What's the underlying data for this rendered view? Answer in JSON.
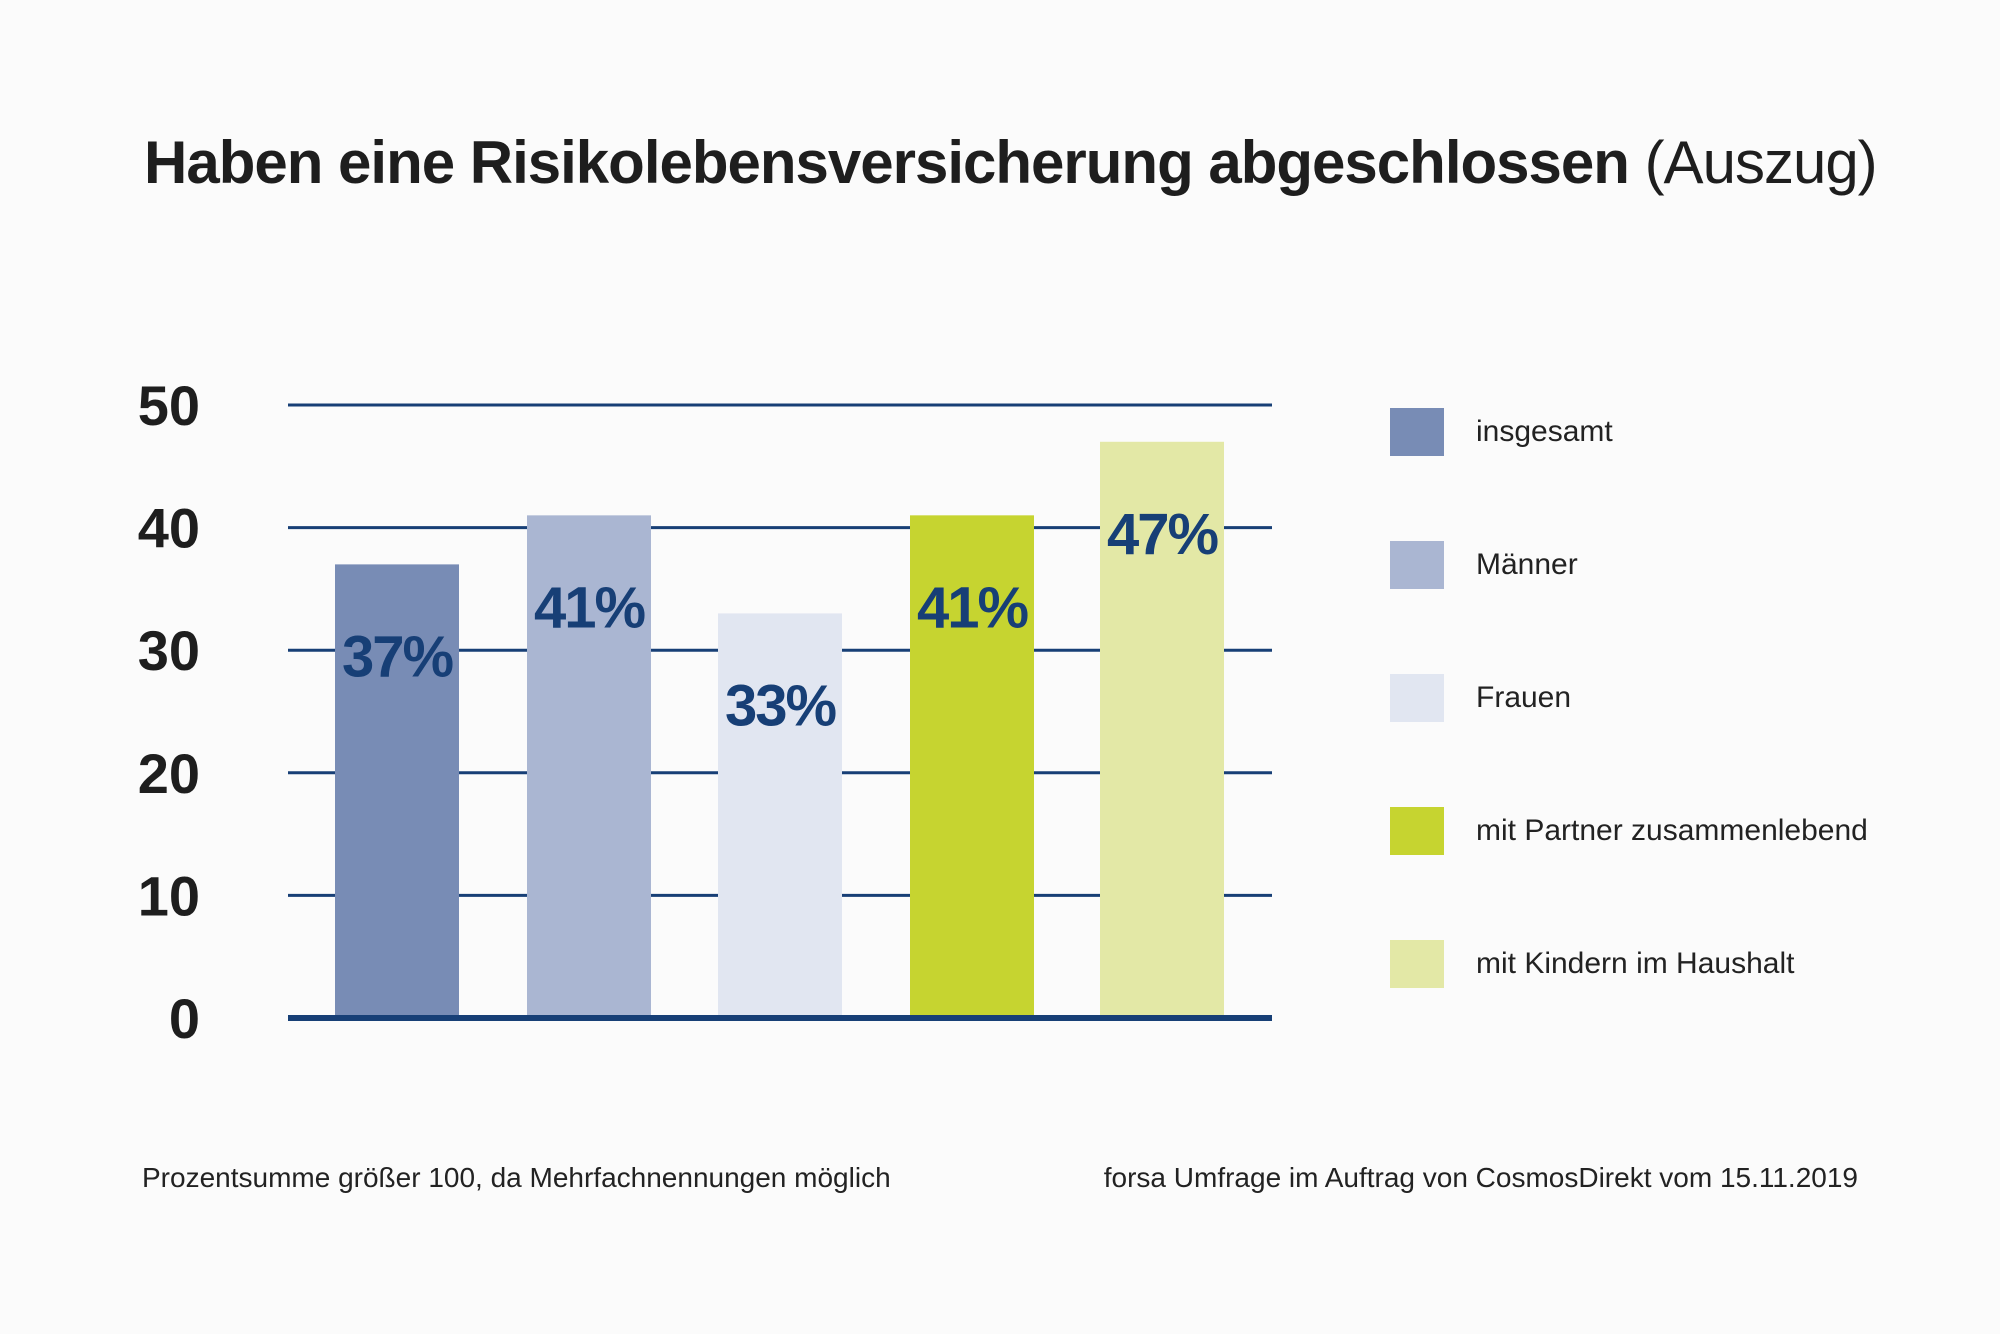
{
  "title": {
    "main": "Haben eine Risikolebensversicherung abgeschlossen",
    "suffix": "(Auszug)"
  },
  "chart_data": {
    "type": "bar",
    "categories": [
      "insgesamt",
      "Männer",
      "Frauen",
      "mit Partner zusammenlebend",
      "mit Kindern im Haushalt"
    ],
    "values": [
      37,
      41,
      33,
      41,
      47
    ],
    "value_labels": [
      "37%",
      "41%",
      "33%",
      "41%",
      "47%"
    ],
    "colors": [
      "#788cb5",
      "#aab6d2",
      "#e1e6f1",
      "#c6d430",
      "#e3e8a6"
    ],
    "label_color": "#173f76",
    "grid_color": "#173f76",
    "ylim": [
      0,
      50
    ],
    "yticks": [
      "0",
      "10",
      "20",
      "30",
      "40",
      "50"
    ],
    "grid": true,
    "legend_position": "right"
  },
  "legend": {
    "items": [
      {
        "label": "insgesamt",
        "color": "#788cb5"
      },
      {
        "label": "Männer",
        "color": "#aab6d2"
      },
      {
        "label": "Frauen",
        "color": "#e1e6f1"
      },
      {
        "label": "mit Partner zusammenlebend",
        "color": "#c6d430"
      },
      {
        "label": "mit Kindern im Haushalt",
        "color": "#e3e8a6"
      }
    ]
  },
  "footer": {
    "left": "Prozentsumme größer 100, da Mehrfachnennungen möglich",
    "right": "forsa Umfrage im Auftrag von CosmosDirekt vom 15.11.2019"
  }
}
